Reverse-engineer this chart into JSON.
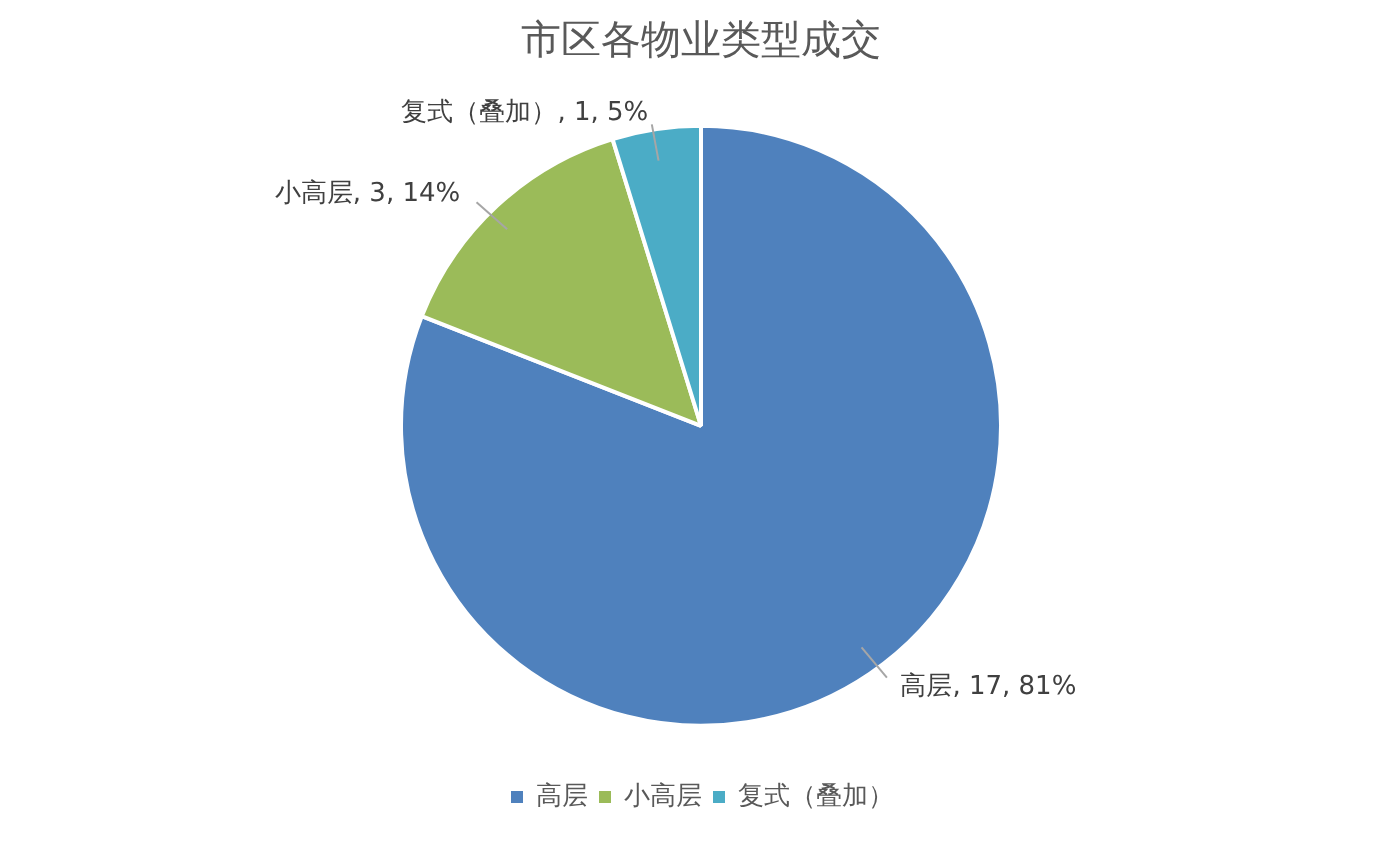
{
  "chart_data": {
    "type": "pie",
    "title": "市区各物业类型成交",
    "categories": [
      "高层",
      "小高层",
      "复式（叠加）"
    ],
    "values": [
      17,
      3,
      1
    ],
    "colors": [
      "#4f81bd",
      "#9bbb59",
      "#4bacc6"
    ],
    "value_labels": [
      "高层, 17, 81%",
      "小高层, 3, 14%",
      "复式（叠加）, 1, 5%"
    ],
    "legend": "bottom"
  }
}
